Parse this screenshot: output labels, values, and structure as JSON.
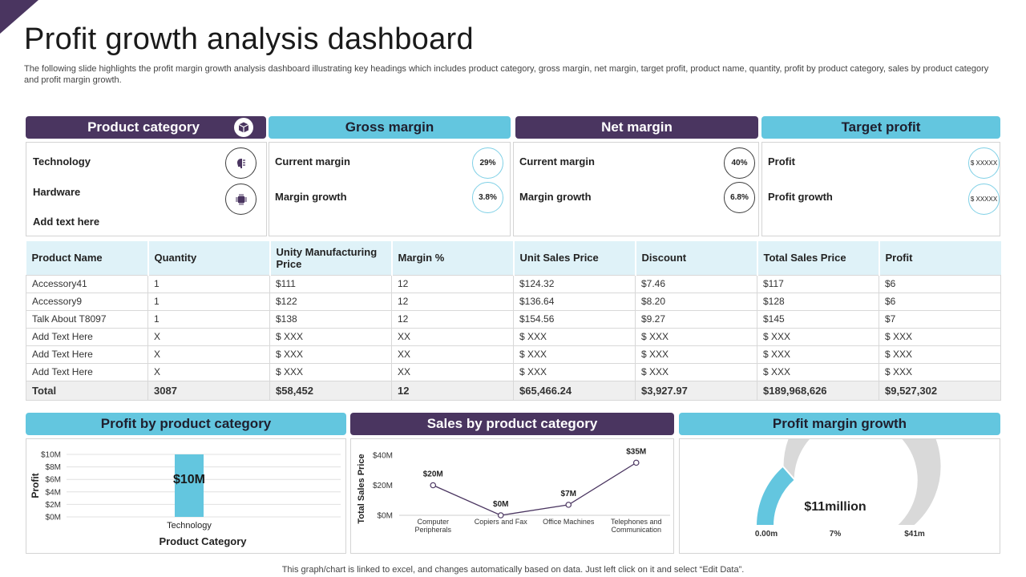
{
  "title": "Profit growth analysis dashboard",
  "subtitle": "The following slide highlights the profit margin growth analysis dashboard illustrating key headings which includes product category, gross margin, net margin, target profit, product name, quantity, profit by product category, sales by product category and profit margin growth.",
  "colors": {
    "dark": "#4a3560",
    "light": "#63c6df",
    "table_header": "#dff2f8"
  },
  "cards": {
    "product_category": {
      "title": "Product category",
      "icon": "box-icon",
      "items": [
        {
          "label": "Technology",
          "icon": "brain-chip-icon"
        },
        {
          "label": "Hardware",
          "icon": "cpu-chip-icon"
        },
        {
          "label": "Add text here"
        }
      ]
    },
    "gross_margin": {
      "title": "Gross margin",
      "rows": [
        {
          "label": "Current margin",
          "value": "29%"
        },
        {
          "label": "Margin growth",
          "value": "3.8%"
        }
      ]
    },
    "net_margin": {
      "title": "Net margin",
      "rows": [
        {
          "label": "Current margin",
          "value": "40%"
        },
        {
          "label": "Margin growth",
          "value": "6.8%"
        }
      ]
    },
    "target_profit": {
      "title": "Target profit",
      "rows": [
        {
          "label": "Profit",
          "value": "$ XXXXX"
        },
        {
          "label": "Profit  growth",
          "value": "$ XXXXX"
        }
      ]
    }
  },
  "table": {
    "headers": [
      "Product Name",
      "Quantity",
      "Unity Manufacturing Price",
      "Margin %",
      "Unit Sales Price",
      "Discount",
      "Total Sales Price",
      "Profit"
    ],
    "rows": [
      [
        "Accessory41",
        "1",
        "$111",
        "12",
        "$124.32",
        "$7.46",
        "$117",
        "$6"
      ],
      [
        "Accessory9",
        "1",
        "$122",
        "12",
        "$136.64",
        "$8.20",
        "$128",
        "$6"
      ],
      [
        "Talk About T8097",
        "1",
        "$138",
        "12",
        "$154.56",
        "$9.27",
        "$145",
        "$7"
      ],
      [
        "Add Text Here",
        "X",
        "$ XXX",
        "XX",
        "$ XXX",
        "$ XXX",
        "$ XXX",
        "$ XXX"
      ],
      [
        "Add Text Here",
        "X",
        "$ XXX",
        "XX",
        "$ XXX",
        "$ XXX",
        "$ XXX",
        "$ XXX"
      ],
      [
        "Add Text Here",
        "X",
        "$ XXX",
        "XX",
        "$ XXX",
        "$ XXX",
        "$ XXX",
        "$ XXX"
      ]
    ],
    "total": [
      "Total",
      "3087",
      "$58,452",
      "12",
      "$65,466.24",
      "$3,927.97",
      "$189,968,626",
      "$9,527,302"
    ]
  },
  "sections": {
    "profit_by_category": "Profit by product category",
    "sales_by_category": "Sales by product category",
    "profit_margin_growth": "Profit margin growth"
  },
  "chart_data": [
    {
      "type": "bar",
      "categories": [
        "Technology"
      ],
      "values": [
        10
      ],
      "data_labels": [
        "$10M"
      ],
      "ylabel": "Profit",
      "xlabel": "Product Category",
      "ylim": [
        0,
        10
      ],
      "yticks": [
        "$0M",
        "$2M",
        "$4M",
        "$6M",
        "$8M",
        "$10M"
      ],
      "grid": true,
      "color": "#63c6df"
    },
    {
      "type": "line",
      "categories": [
        "Computer Peripherals",
        "Copiers and Fax",
        "Office Machines",
        "Telephones and Communication"
      ],
      "values": [
        20,
        0,
        7,
        35
      ],
      "data_labels": [
        "$20M",
        "$0M",
        "$7M",
        "$35M"
      ],
      "ylabel": "Total Sales Price",
      "ylim": [
        0,
        40
      ],
      "yticks": [
        "$0M",
        "$20M",
        "$40M"
      ],
      "color": "#4a3560"
    },
    {
      "type": "gauge",
      "value_label": "$11million",
      "min_label": "0.00m",
      "mid_label": "7%",
      "max_label": "$41m",
      "fraction": 0.27,
      "fill_color": "#63c6df",
      "track_color": "#d9d9d9"
    }
  ],
  "footer": "This graph/chart is linked to excel, and changes automatically based on data. Just left click on it and select “Edit Data”."
}
